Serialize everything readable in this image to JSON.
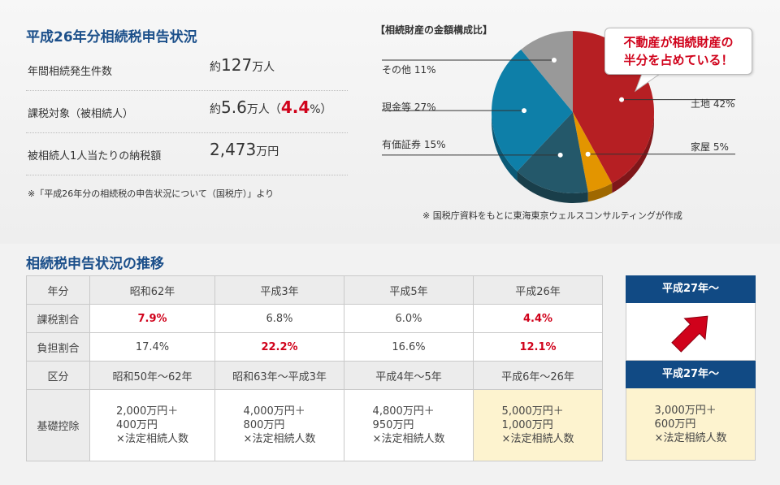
{
  "summary": {
    "title": "平成26年分相続税申告状況",
    "rows": [
      {
        "label": "年間相続発生件数",
        "prefix": "約",
        "value": "127",
        "unit": "万人",
        "pct": "",
        "pct_unit": ""
      },
      {
        "label": "課税対象（被相続人）",
        "prefix": "約",
        "value": "5.6",
        "unit": "万人（",
        "pct": "4.4",
        "pct_unit": "%）"
      },
      {
        "label": "被相続人1人当たりの納税額",
        "prefix": "",
        "value": "2,473",
        "unit": "万円",
        "pct": "",
        "pct_unit": ""
      }
    ],
    "note": "※「平成26年分の相続税の申告状況について（国税庁）」より"
  },
  "chart_data": {
    "type": "pie",
    "title": "【相続財産の金額構成比】",
    "slices": [
      {
        "label": "土地",
        "value": 42,
        "text": "土地 42%",
        "color": "#b61f23"
      },
      {
        "label": "家屋",
        "value": 5,
        "text": "家屋 5%",
        "color": "#e39500"
      },
      {
        "label": "有価証券",
        "value": 15,
        "text": "有価証券 15%",
        "color": "#24586a"
      },
      {
        "label": "現金等",
        "value": 27,
        "text": "現金等 27%",
        "color": "#0e7fa8"
      },
      {
        "label": "その他",
        "value": 11,
        "text": "その他 11%",
        "color": "#999999"
      }
    ],
    "source_note": "※ 国税庁資料をもとに東海東京ウェルスコンサルティングが作成"
  },
  "callout": {
    "line1": "不動産が相続財産の",
    "line2": "半分を占めている！"
  },
  "history": {
    "title": "相続税申告状況の推移",
    "header": [
      "年分",
      "昭和62年",
      "平成3年",
      "平成5年",
      "平成26年"
    ],
    "tax_ratio": [
      "課税割合",
      "7.9%",
      "6.8%",
      "6.0%",
      "4.4%"
    ],
    "burden_ratio": [
      "負担割合",
      "17.4%",
      "22.2%",
      "16.6%",
      "12.1%"
    ],
    "period": [
      "区分",
      "昭和50年～62年",
      "昭和63年～平成3年",
      "平成4年～5年",
      "平成6年～26年"
    ],
    "deduction_label": "基礎控除",
    "deductions": [
      {
        "l1": "2,000万円＋",
        "l2": "400万円",
        "l3": "×法定相続人数"
      },
      {
        "l1": "4,000万円＋",
        "l2": "800万円",
        "l3": "×法定相続人数"
      },
      {
        "l1": "4,800万円＋",
        "l2": "950万円",
        "l3": "×法定相続人数"
      },
      {
        "l1": "5,000万円＋",
        "l2": "1,000万円",
        "l3": "×法定相続人数"
      }
    ]
  },
  "future": {
    "head1": "平成27年～",
    "head2": "平成27年～",
    "deduction": {
      "l1": "3,000万円＋",
      "l2": "600万円",
      "l3": "×法定相続人数"
    },
    "arrow_color": "#d0021b"
  }
}
